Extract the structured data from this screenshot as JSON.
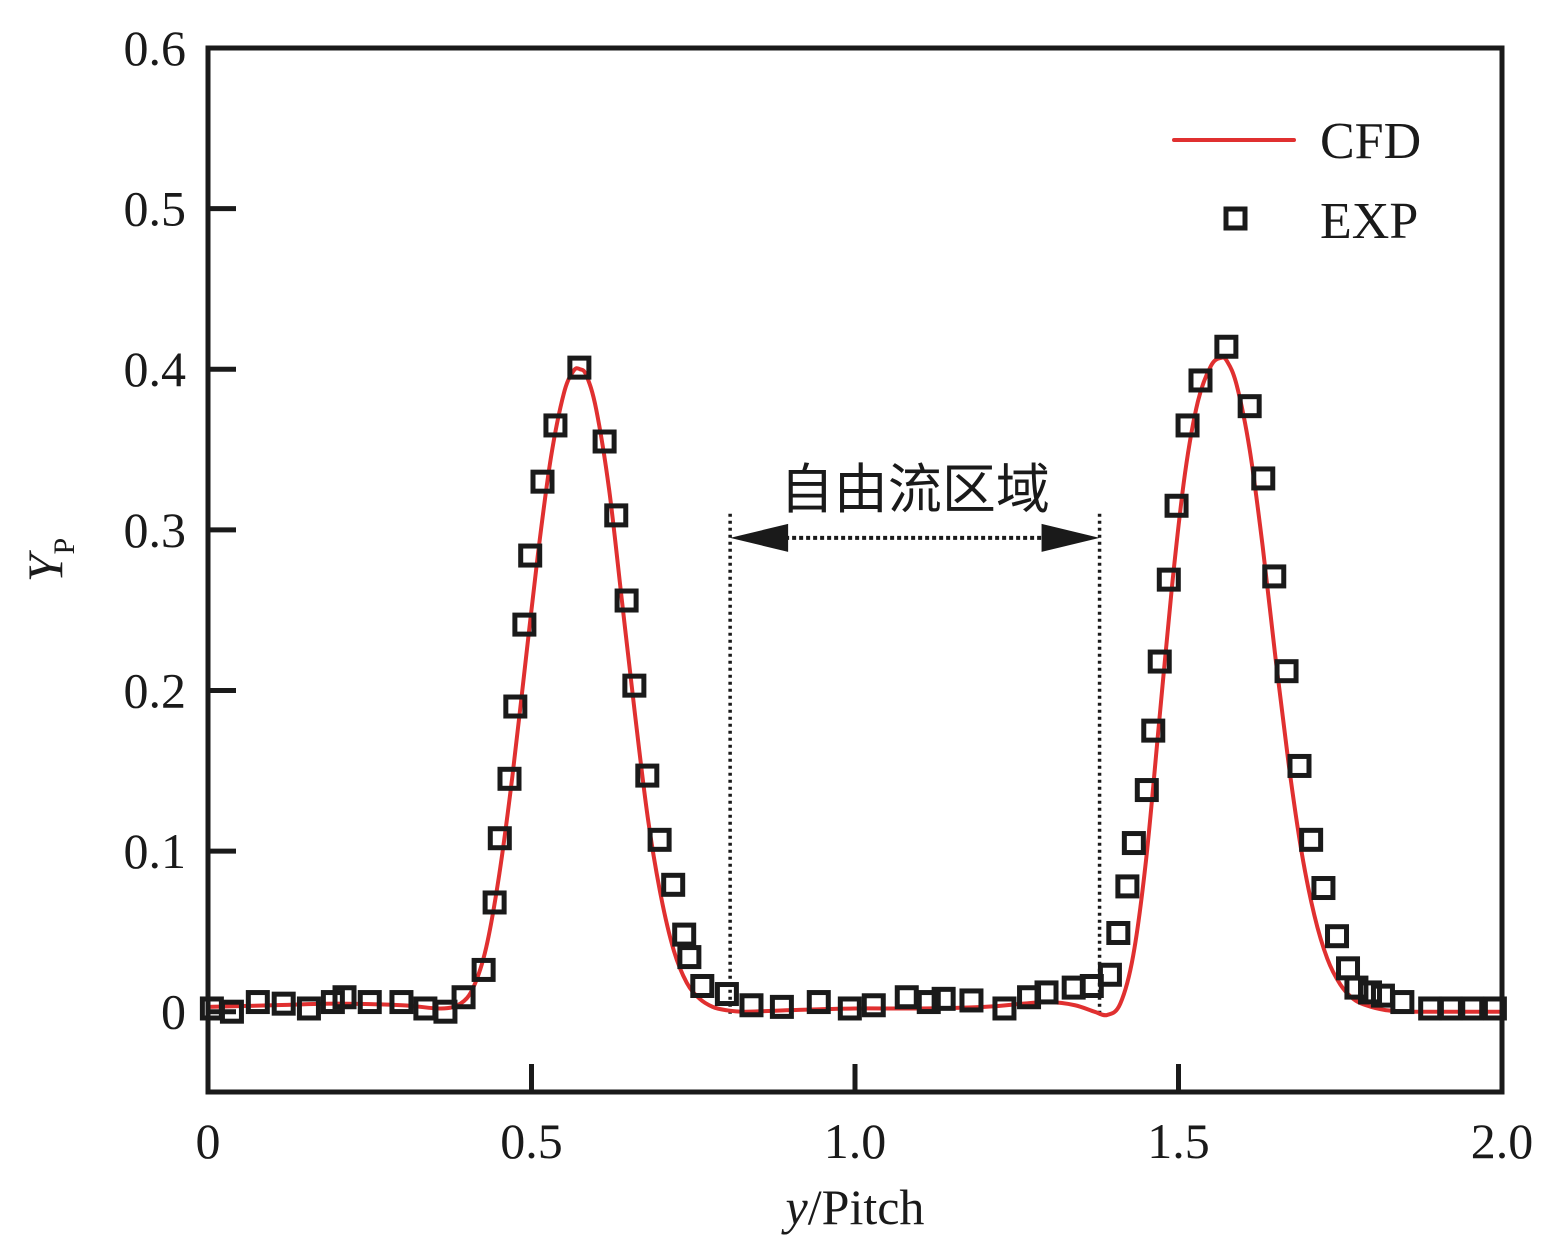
{
  "chart_data": {
    "type": "line",
    "title": "",
    "xlabel": "y/Pitch",
    "xlabel_parts": {
      "italic": "y",
      "rest": "/Pitch"
    },
    "ylabel": "Y_P",
    "ylabel_parts": {
      "main": "Y",
      "sub": "P"
    },
    "xlim": [
      0,
      2.0
    ],
    "ylim": [
      -0.05,
      0.6
    ],
    "xticks": [
      0,
      0.5,
      1.0,
      1.5,
      2.0
    ],
    "xtick_labels": [
      "0",
      "0.5",
      "1.0",
      "1.5",
      "2.0"
    ],
    "yticks": [
      0,
      0.1,
      0.2,
      0.3,
      0.4,
      0.5,
      0.6
    ],
    "ytick_labels": [
      "0",
      "0.1",
      "0.2",
      "0.3",
      "0.4",
      "0.5",
      "0.6"
    ],
    "grid": false,
    "legend_position": "top-right",
    "colors": {
      "cfd": "#e03030",
      "exp": "#1a1a1a",
      "axis": "#1a1a1a"
    },
    "series": [
      {
        "name": "CFD",
        "style": "line",
        "x": [
          0.0,
          0.1,
          0.2,
          0.3,
          0.36,
          0.39,
          0.41,
          0.43,
          0.45,
          0.47,
          0.49,
          0.51,
          0.53,
          0.55,
          0.565,
          0.575,
          0.585,
          0.6,
          0.62,
          0.64,
          0.66,
          0.68,
          0.7,
          0.72,
          0.74,
          0.76,
          0.78,
          0.8,
          0.83,
          0.9,
          1.0,
          1.1,
          1.2,
          1.26,
          1.3,
          1.34,
          1.37,
          1.39,
          1.41,
          1.43,
          1.45,
          1.47,
          1.49,
          1.51,
          1.53,
          1.55,
          1.565,
          1.575,
          1.59,
          1.61,
          1.63,
          1.65,
          1.67,
          1.69,
          1.71,
          1.73,
          1.75,
          1.77,
          1.79,
          1.82,
          1.86,
          1.9,
          2.0
        ],
        "y": [
          0.003,
          0.004,
          0.005,
          0.004,
          0.002,
          0.005,
          0.015,
          0.04,
          0.085,
          0.145,
          0.215,
          0.285,
          0.345,
          0.385,
          0.399,
          0.4,
          0.396,
          0.375,
          0.325,
          0.255,
          0.185,
          0.12,
          0.072,
          0.038,
          0.018,
          0.008,
          0.003,
          0.001,
          0.0,
          0.001,
          0.002,
          0.002,
          0.003,
          0.005,
          0.006,
          0.004,
          0.0,
          -0.002,
          0.005,
          0.035,
          0.095,
          0.18,
          0.265,
          0.335,
          0.38,
          0.402,
          0.407,
          0.405,
          0.39,
          0.35,
          0.29,
          0.22,
          0.155,
          0.1,
          0.06,
          0.033,
          0.017,
          0.008,
          0.004,
          0.001,
          0.0,
          0.0,
          0.0
        ]
      },
      {
        "name": "EXP",
        "style": "square-marker",
        "x": [
          0.006,
          0.037,
          0.077,
          0.117,
          0.156,
          0.193,
          0.211,
          0.25,
          0.299,
          0.336,
          0.367,
          0.395,
          0.426,
          0.443,
          0.451,
          0.466,
          0.475,
          0.489,
          0.498,
          0.517,
          0.537,
          0.574,
          0.613,
          0.631,
          0.647,
          0.659,
          0.679,
          0.698,
          0.719,
          0.736,
          0.744,
          0.764,
          0.802,
          0.84,
          0.887,
          0.944,
          0.992,
          1.029,
          1.08,
          1.114,
          1.137,
          1.18,
          1.231,
          1.269,
          1.296,
          1.338,
          1.366,
          1.394,
          1.407,
          1.421,
          1.431,
          1.451,
          1.461,
          1.471,
          1.485,
          1.497,
          1.514,
          1.534,
          1.574,
          1.61,
          1.631,
          1.648,
          1.667,
          1.687,
          1.705,
          1.724,
          1.745,
          1.762,
          1.775,
          1.796,
          1.816,
          1.846,
          1.889,
          1.921,
          1.954,
          1.989
        ],
        "y": [
          0.002,
          0.0,
          0.006,
          0.005,
          0.002,
          0.006,
          0.009,
          0.006,
          0.006,
          0.002,
          0.0,
          0.009,
          0.026,
          0.068,
          0.108,
          0.145,
          0.19,
          0.241,
          0.284,
          0.33,
          0.365,
          0.401,
          0.355,
          0.309,
          0.256,
          0.203,
          0.147,
          0.107,
          0.079,
          0.048,
          0.034,
          0.016,
          0.011,
          0.004,
          0.003,
          0.006,
          0.002,
          0.004,
          0.009,
          0.006,
          0.008,
          0.007,
          0.002,
          0.009,
          0.012,
          0.015,
          0.016,
          0.023,
          0.049,
          0.078,
          0.105,
          0.138,
          0.175,
          0.218,
          0.269,
          0.315,
          0.365,
          0.393,
          0.414,
          0.377,
          0.332,
          0.271,
          0.212,
          0.153,
          0.107,
          0.077,
          0.047,
          0.027,
          0.015,
          0.012,
          0.01,
          0.006,
          0.002,
          0.002,
          0.002,
          0.002
        ]
      }
    ],
    "legend": [
      {
        "label": "CFD",
        "marker": "line"
      },
      {
        "label": "EXP",
        "marker": "square"
      }
    ],
    "annotations": [
      {
        "text": "自由流区域",
        "type": "double-arrow-region",
        "x_start": 0.807,
        "x_end": 1.378,
        "arrow_y": 0.295,
        "line_top_y": 0.31,
        "line_bottom_y": -0.002
      }
    ]
  }
}
